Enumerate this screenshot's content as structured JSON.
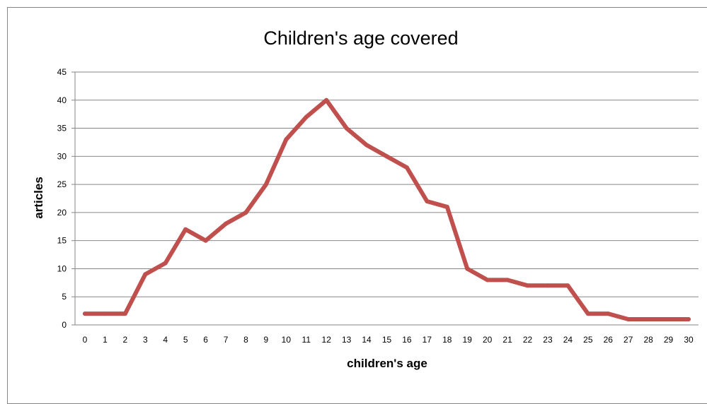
{
  "chart_data": {
    "type": "line",
    "title": "Children's age covered",
    "xlabel": "children's age",
    "ylabel": "articles",
    "x": [
      0,
      1,
      2,
      3,
      4,
      5,
      6,
      7,
      8,
      9,
      10,
      11,
      12,
      13,
      14,
      15,
      16,
      17,
      18,
      19,
      20,
      21,
      22,
      23,
      24,
      25,
      26,
      27,
      28,
      29,
      30
    ],
    "series": [
      {
        "values": [
          2,
          2,
          2,
          9,
          11,
          17,
          15,
          18,
          20,
          25,
          33,
          37,
          40,
          35,
          32,
          30,
          28,
          22,
          21,
          10,
          8,
          8,
          7,
          7,
          7,
          2,
          2,
          1,
          1,
          1,
          1
        ],
        "color": "#C0504D"
      }
    ],
    "ylim": [
      0,
      45
    ],
    "yticks": [
      0,
      5,
      10,
      15,
      20,
      25,
      30,
      35,
      40,
      45
    ],
    "grid": true,
    "legend": "none"
  }
}
